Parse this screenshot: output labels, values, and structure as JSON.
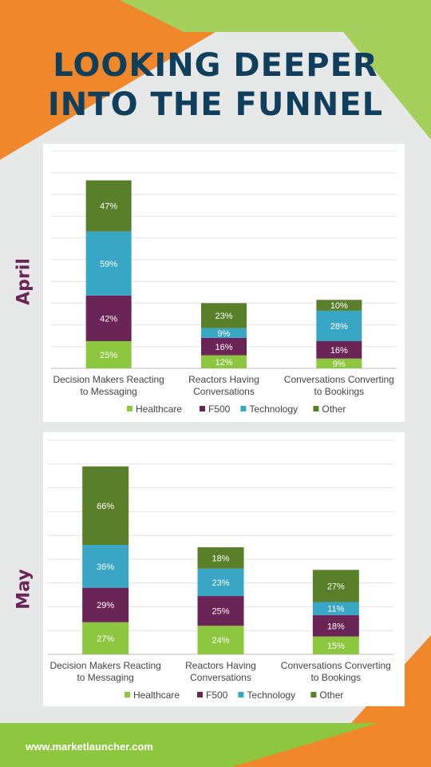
{
  "header": {
    "title_line1": "LOOKING DEEPER",
    "title_line2": "INTO THE FUNNEL"
  },
  "footer": {
    "url": "www.marketlauncher.com"
  },
  "colors": {
    "Healthcare": "#8dc63f",
    "F500": "#6a2456",
    "Technology": "#3aa6c6",
    "Other": "#5a7f2a",
    "title": "#0f3f5c",
    "accent_orange": "#f0872b",
    "accent_green": "#8dc63f"
  },
  "legend": [
    "Healthcare",
    "F500",
    "Technology",
    "Other"
  ],
  "chart_data": [
    {
      "type": "bar",
      "stacked": true,
      "month_label": "April",
      "categories": [
        [
          "Decision Makers Reacting",
          "to Messaging"
        ],
        [
          "Reactors Having",
          "Conversations"
        ],
        [
          "Conversations Converting",
          "to Bookings"
        ]
      ],
      "series": [
        {
          "name": "Healthcare",
          "values": [
            25,
            12,
            9
          ]
        },
        {
          "name": "F500",
          "values": [
            42,
            16,
            16
          ]
        },
        {
          "name": "Technology",
          "values": [
            59,
            9,
            28
          ]
        },
        {
          "name": "Other",
          "values": [
            47,
            23,
            10
          ]
        }
      ],
      "ylim": [
        0,
        200
      ],
      "grid": true,
      "legend_position": "bottom"
    },
    {
      "type": "bar",
      "stacked": true,
      "month_label": "May",
      "categories": [
        [
          "Decision Makers Reacting",
          "to Messaging"
        ],
        [
          "Reactors Having",
          "Conversations"
        ],
        [
          "Conversations Converting",
          "to Bookings"
        ]
      ],
      "series": [
        {
          "name": "Healthcare",
          "values": [
            27,
            24,
            15
          ]
        },
        {
          "name": "F500",
          "values": [
            29,
            25,
            18
          ]
        },
        {
          "name": "Technology",
          "values": [
            36,
            23,
            11
          ]
        },
        {
          "name": "Other",
          "values": [
            66,
            18,
            27
          ]
        }
      ],
      "ylim": [
        0,
        180
      ],
      "grid": true,
      "legend_position": "bottom"
    }
  ]
}
